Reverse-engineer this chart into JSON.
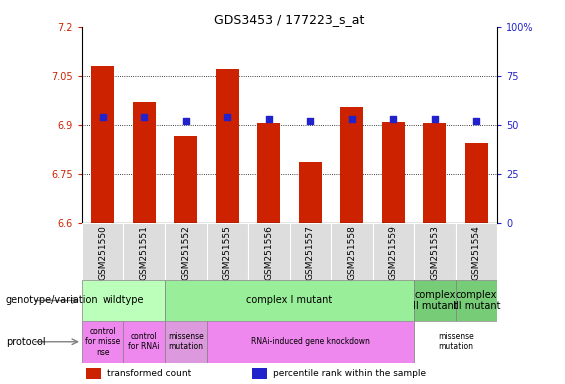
{
  "title": "GDS3453 / 177223_s_at",
  "samples": [
    "GSM251550",
    "GSM251551",
    "GSM251552",
    "GSM251555",
    "GSM251556",
    "GSM251557",
    "GSM251558",
    "GSM251559",
    "GSM251553",
    "GSM251554"
  ],
  "bar_values": [
    7.08,
    6.97,
    6.865,
    7.07,
    6.905,
    6.785,
    6.955,
    6.91,
    6.905,
    6.845
  ],
  "dot_values": [
    54,
    54,
    52,
    54,
    53,
    52,
    53,
    53,
    53,
    52
  ],
  "ylim_left": [
    6.6,
    7.2
  ],
  "ylim_right": [
    0,
    100
  ],
  "bar_color": "#cc2200",
  "dot_color": "#2222cc",
  "ybase": 6.6,
  "grid_values": [
    6.75,
    6.9,
    7.05
  ],
  "left_ticks": [
    6.6,
    6.75,
    6.9,
    7.05,
    7.2
  ],
  "left_tick_labels": [
    "6.6",
    "6.75",
    "6.9",
    "7.05",
    "7.2"
  ],
  "right_ticks": [
    0,
    25,
    50,
    75,
    100
  ],
  "right_tick_labels": [
    "0",
    "25",
    "50",
    "75",
    "100%"
  ],
  "genotype_row": [
    {
      "label": "wildtype",
      "start": 0,
      "end": 2,
      "color": "#bbffbb"
    },
    {
      "label": "complex I mutant",
      "start": 2,
      "end": 8,
      "color": "#99ee99"
    },
    {
      "label": "complex\nII mutant",
      "start": 8,
      "end": 9,
      "color": "#77cc77"
    },
    {
      "label": "complex\nIII mutant",
      "start": 9,
      "end": 10,
      "color": "#77cc77"
    }
  ],
  "protocol_row": [
    {
      "label": "control\nfor misse\nnse",
      "start": 0,
      "end": 1,
      "color": "#ee88ee"
    },
    {
      "label": "control\nfor RNAi",
      "start": 1,
      "end": 2,
      "color": "#ee88ee"
    },
    {
      "label": "missense\nmutation",
      "start": 2,
      "end": 3,
      "color": "#dd99dd"
    },
    {
      "label": "RNAi-induced gene knockdown",
      "start": 3,
      "end": 8,
      "color": "#ee88ee"
    },
    {
      "label": "missense\nmutation",
      "start": 8,
      "end": 10,
      "color": "#ffffff"
    }
  ],
  "legend_items": [
    {
      "color": "#cc2200",
      "label": "transformed count"
    },
    {
      "color": "#2222cc",
      "label": "percentile rank within the sample"
    }
  ],
  "xticklabel_bg": "#dddddd"
}
